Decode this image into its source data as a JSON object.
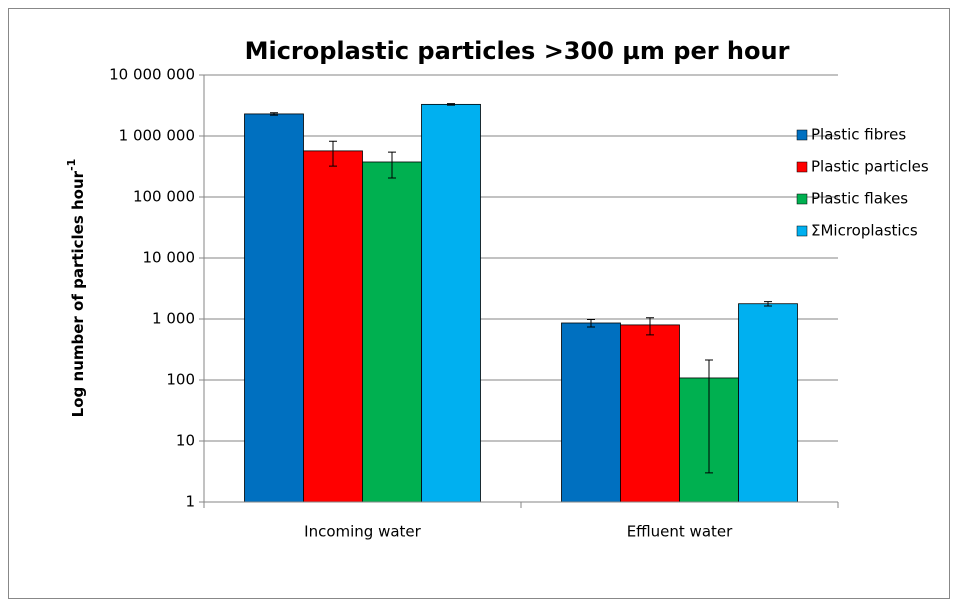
{
  "chart_data": {
    "type": "bar",
    "title": "Microplastic particles >300 µm per hour",
    "ylabel": "Log number of particles hour",
    "ylabel_sup": "-1",
    "log_scale": true,
    "grid": true,
    "legend": "right",
    "categories": [
      "Incoming water",
      "Effluent water"
    ],
    "ylim": [
      1,
      10000000
    ],
    "yticks": [
      1,
      10,
      100,
      {
        "value": 1000,
        "label": "1 000"
      },
      {
        "value": 10000,
        "label": "10 000"
      },
      {
        "value": 100000,
        "label": "100 000"
      },
      {
        "value": 1000000,
        "label": "1 000 000"
      },
      {
        "value": 10000000,
        "label": "10 000 000"
      }
    ],
    "series": [
      {
        "name": "Plastic fibres",
        "color": "#0070c0",
        "values": [
          2300000,
          860
        ],
        "errors": [
          100000,
          120
        ]
      },
      {
        "name": "Plastic particles",
        "color": "#ff0000",
        "values": [
          570000,
          800
        ],
        "errors": [
          250000,
          250
        ]
      },
      {
        "name": "Plastic flakes",
        "color": "#00b050",
        "values": [
          375000,
          108
        ],
        "errors": [
          170000,
          105
        ]
      },
      {
        "name": "ΣMicroplastics",
        "color": "#00b0f0",
        "values": [
          3300000,
          1780
        ],
        "errors": [
          100000,
          150
        ]
      }
    ]
  }
}
